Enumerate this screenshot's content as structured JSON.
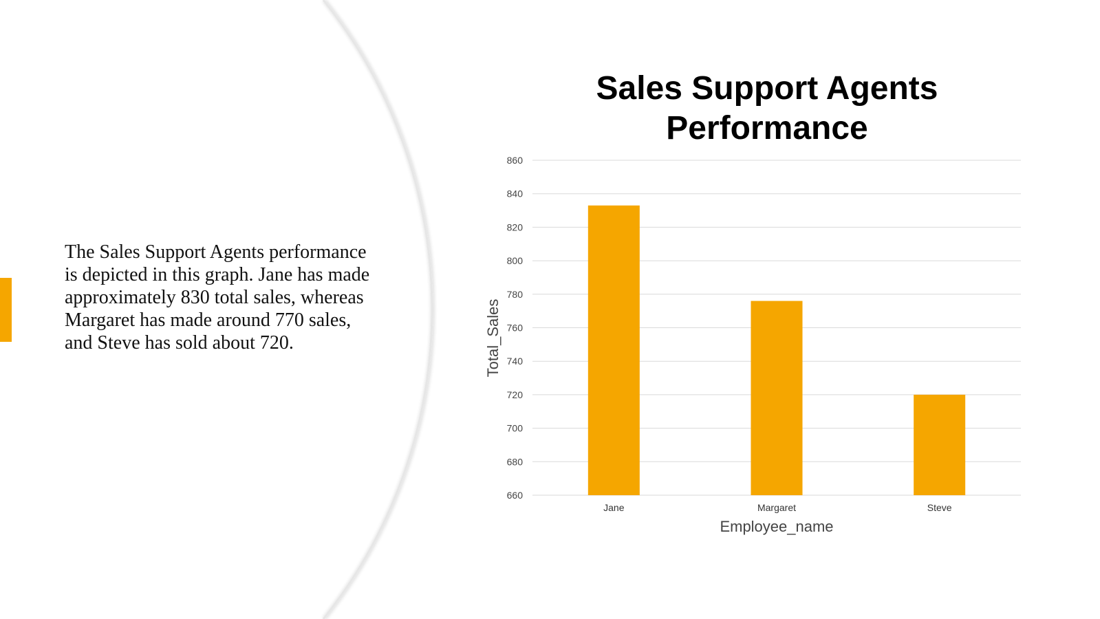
{
  "slide": {
    "description": "The Sales Support Agents performance is depicted in this graph. Jane has made approximately 830 total sales, whereas Margaret has made around 770 sales, and Steve has sold about 720."
  },
  "colors": {
    "accent": "#f5a600",
    "bar": "#f5a600",
    "grid": "#d9d9d9",
    "background": "#ffffff"
  },
  "chart_data": {
    "type": "bar",
    "title": "Sales Support Agents Performance",
    "xlabel": "Employee_name",
    "ylabel": "Total_Sales",
    "categories": [
      "Jane",
      "Margaret",
      "Steve"
    ],
    "values": [
      833,
      776,
      720
    ],
    "ylim": [
      660,
      860
    ],
    "yticks": [
      660,
      680,
      700,
      720,
      740,
      760,
      780,
      800,
      820,
      840,
      860
    ],
    "grid": true,
    "legend": "none"
  }
}
